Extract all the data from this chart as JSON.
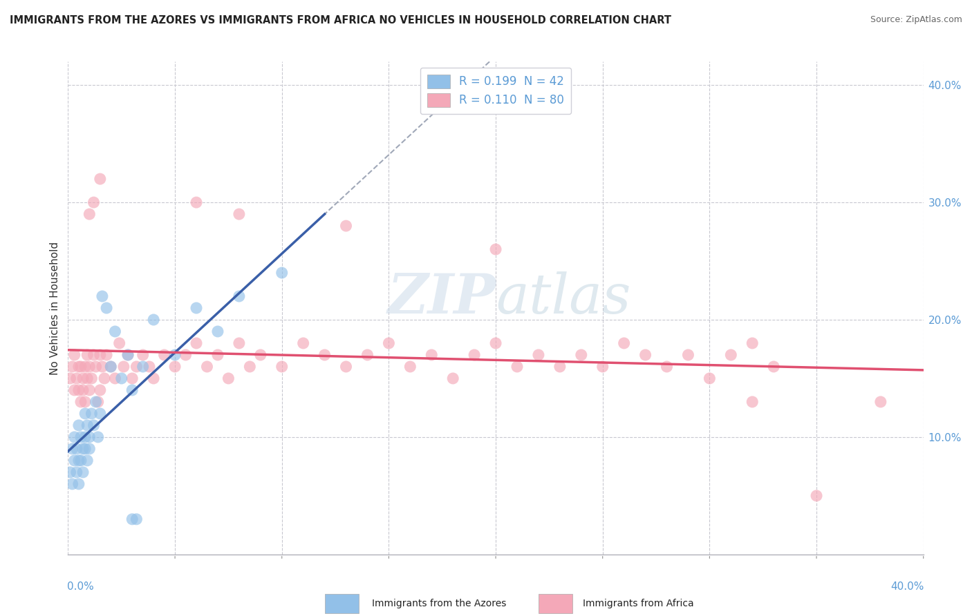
{
  "title": "IMMIGRANTS FROM THE AZORES VS IMMIGRANTS FROM AFRICA NO VEHICLES IN HOUSEHOLD CORRELATION CHART",
  "source": "Source: ZipAtlas.com",
  "ylabel": "No Vehicles in Household",
  "xlim": [
    0.0,
    0.4
  ],
  "ylim": [
    0.0,
    0.42
  ],
  "legend1_label": "R = 0.199  N = 42",
  "legend2_label": "R = 0.110  N = 80",
  "legend1_color": "#92c0e8",
  "legend2_color": "#f4a8b8",
  "trendline1_color": "#3a5fa8",
  "trendline2_color": "#e05070",
  "trendline_dashed_color": "#a0a8b8",
  "watermark_text": "ZIPatlas",
  "azores_x": [
    0.001,
    0.002,
    0.002,
    0.003,
    0.003,
    0.004,
    0.004,
    0.005,
    0.005,
    0.005,
    0.006,
    0.006,
    0.007,
    0.007,
    0.008,
    0.008,
    0.008,
    0.009,
    0.009,
    0.01,
    0.01,
    0.011,
    0.012,
    0.013,
    0.014,
    0.015,
    0.016,
    0.018,
    0.02,
    0.022,
    0.025,
    0.028,
    0.03,
    0.035,
    0.04,
    0.05,
    0.06,
    0.07,
    0.08,
    0.1,
    0.03,
    0.032
  ],
  "azores_y": [
    0.07,
    0.09,
    0.06,
    0.08,
    0.1,
    0.07,
    0.09,
    0.08,
    0.11,
    0.06,
    0.1,
    0.08,
    0.09,
    0.07,
    0.1,
    0.09,
    0.12,
    0.08,
    0.11,
    0.1,
    0.09,
    0.12,
    0.11,
    0.13,
    0.1,
    0.12,
    0.22,
    0.21,
    0.16,
    0.19,
    0.15,
    0.17,
    0.14,
    0.16,
    0.2,
    0.17,
    0.21,
    0.19,
    0.22,
    0.24,
    0.03,
    0.03
  ],
  "africa_x": [
    0.001,
    0.002,
    0.003,
    0.003,
    0.004,
    0.005,
    0.005,
    0.006,
    0.006,
    0.007,
    0.007,
    0.008,
    0.008,
    0.009,
    0.009,
    0.01,
    0.01,
    0.011,
    0.012,
    0.013,
    0.014,
    0.015,
    0.015,
    0.016,
    0.017,
    0.018,
    0.02,
    0.022,
    0.024,
    0.026,
    0.028,
    0.03,
    0.032,
    0.035,
    0.038,
    0.04,
    0.045,
    0.05,
    0.055,
    0.06,
    0.065,
    0.07,
    0.075,
    0.08,
    0.085,
    0.09,
    0.1,
    0.11,
    0.12,
    0.13,
    0.14,
    0.15,
    0.16,
    0.17,
    0.18,
    0.19,
    0.2,
    0.21,
    0.22,
    0.23,
    0.24,
    0.25,
    0.26,
    0.27,
    0.28,
    0.29,
    0.3,
    0.31,
    0.32,
    0.33,
    0.01,
    0.012,
    0.015,
    0.06,
    0.08,
    0.13,
    0.2,
    0.32,
    0.35,
    0.38
  ],
  "africa_y": [
    0.15,
    0.16,
    0.14,
    0.17,
    0.15,
    0.16,
    0.14,
    0.13,
    0.16,
    0.15,
    0.14,
    0.16,
    0.13,
    0.15,
    0.17,
    0.16,
    0.14,
    0.15,
    0.17,
    0.16,
    0.13,
    0.14,
    0.17,
    0.16,
    0.15,
    0.17,
    0.16,
    0.15,
    0.18,
    0.16,
    0.17,
    0.15,
    0.16,
    0.17,
    0.16,
    0.15,
    0.17,
    0.16,
    0.17,
    0.18,
    0.16,
    0.17,
    0.15,
    0.18,
    0.16,
    0.17,
    0.16,
    0.18,
    0.17,
    0.16,
    0.17,
    0.18,
    0.16,
    0.17,
    0.15,
    0.17,
    0.18,
    0.16,
    0.17,
    0.16,
    0.17,
    0.16,
    0.18,
    0.17,
    0.16,
    0.17,
    0.15,
    0.17,
    0.18,
    0.16,
    0.29,
    0.3,
    0.32,
    0.3,
    0.29,
    0.28,
    0.26,
    0.13,
    0.05,
    0.13
  ]
}
